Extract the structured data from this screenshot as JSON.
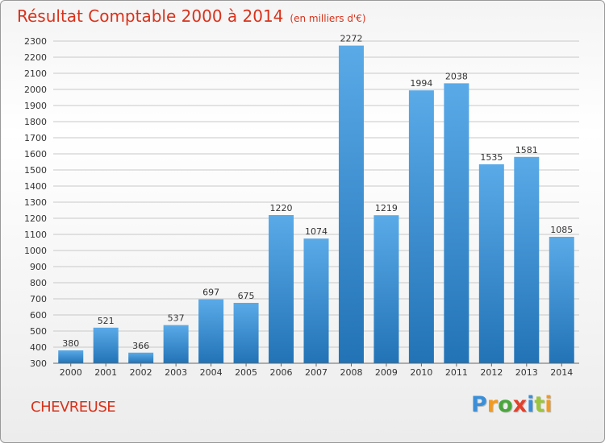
{
  "header": {
    "title": "Résultat Comptable 2000 à 2014",
    "unit": "(en milliers d'€)"
  },
  "commune": "CHEVREUSE",
  "logo": {
    "text": "Proxiti",
    "letter_colors": [
      "#3a8fd8",
      "#f29a1f",
      "#4aa63c",
      "#e2402c",
      "#3a8fd8",
      "#9bc53d",
      "#f29a1f"
    ]
  },
  "colors": {
    "title": "#d8321b",
    "bar_top": "#5aaae8",
    "bar_bottom": "#2273b6",
    "grid": "#c8c8c8"
  },
  "chart_data": {
    "type": "bar",
    "categories": [
      "2000",
      "2001",
      "2002",
      "2003",
      "2004",
      "2005",
      "2006",
      "2007",
      "2008",
      "2009",
      "2010",
      "2011",
      "2012",
      "2013",
      "2014"
    ],
    "values": [
      380,
      521,
      366,
      537,
      697,
      675,
      1220,
      1074,
      2272,
      1219,
      1994,
      2038,
      1535,
      1581,
      1085
    ],
    "title": "Résultat Comptable 2000 à 2014",
    "subtitle": "(en milliers d'€)",
    "xlabel": "",
    "ylabel": "",
    "ylim": [
      300,
      2300
    ],
    "ytick_step": 100,
    "grid": true,
    "data_labels": true
  }
}
